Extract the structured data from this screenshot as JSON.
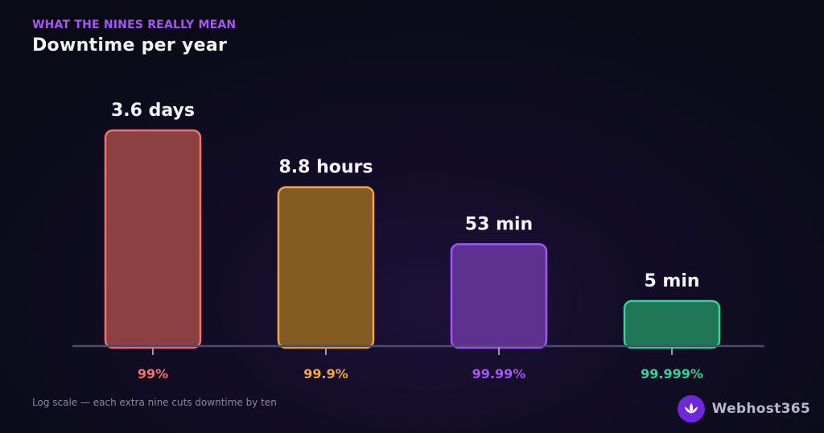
{
  "header": {
    "kicker": "WHAT THE NINES REALLY MEAN",
    "title": "Downtime per year"
  },
  "chart_data": {
    "type": "bar",
    "scale": "log",
    "unit": "minutes",
    "categories": [
      "99%",
      "99.9%",
      "99.99%",
      "99.999%"
    ],
    "values": [
      5256,
      525.6,
      52.56,
      5.256
    ],
    "value_labels": [
      "3.6 days",
      "8.8 hours",
      "53 min",
      "5 min"
    ],
    "colors": {
      "stroke": [
        "#f87171",
        "#f5a742",
        "#a855f7",
        "#34d399"
      ],
      "fill": [
        "#8b4041",
        "#835b22",
        "#5e3190",
        "#1f7757"
      ]
    },
    "grid": false,
    "legend": "none"
  },
  "footer": {
    "note": "Log scale — each extra nine cuts downtime by ten",
    "brand_name": "Webhost365",
    "brand_icon": "lotus-icon"
  }
}
